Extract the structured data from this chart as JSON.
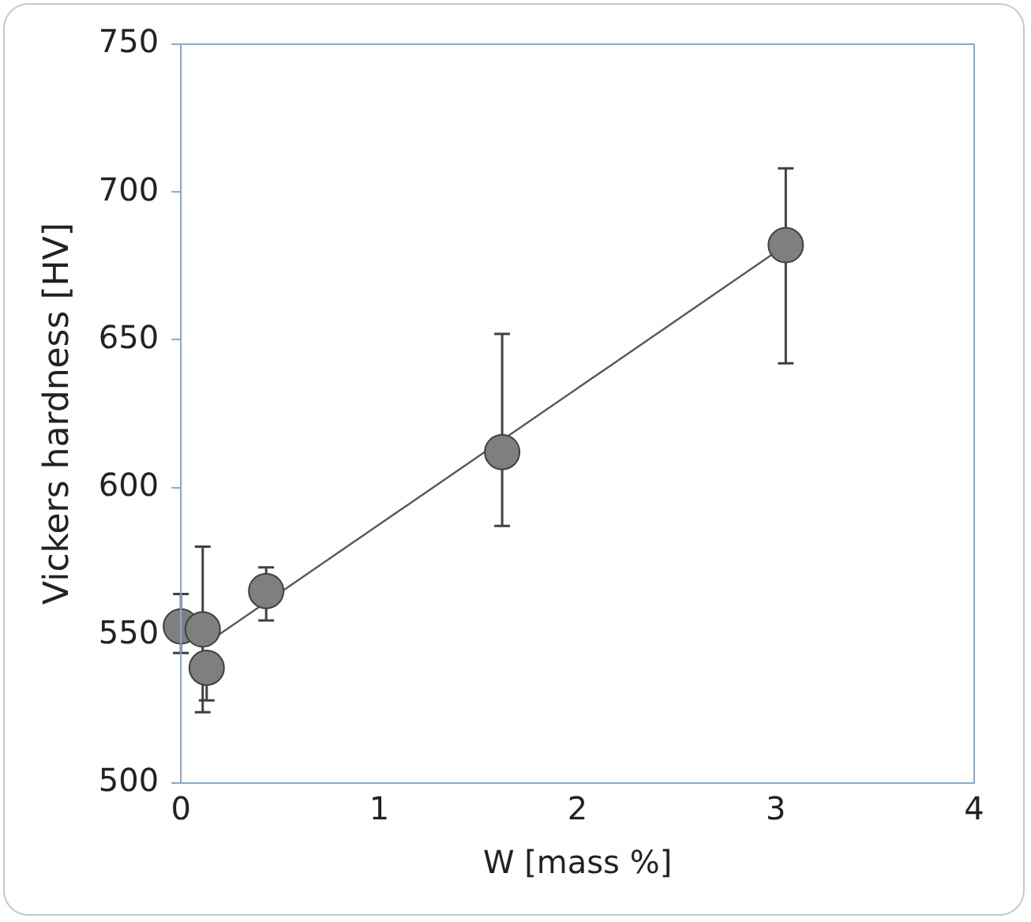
{
  "chart_data": {
    "type": "scatter",
    "xlabel": "W [mass %]",
    "ylabel": "Vickers hardness [HV]",
    "xlim": [
      0,
      4
    ],
    "xticks": [
      0,
      1,
      2,
      3,
      4
    ],
    "ylim": [
      500,
      750
    ],
    "yticks": [
      500,
      550,
      600,
      650,
      700,
      750
    ],
    "grid": false,
    "legend": false,
    "marker": "circle",
    "series": [
      {
        "type": "line",
        "color": "#595959",
        "x": [
          0.1,
          3.05
        ],
        "values": [
          546,
          682
        ],
        "marker": "none"
      },
      {
        "color": "#7f7f7f",
        "x": [
          0,
          0.11,
          0.13,
          0.43,
          1.62,
          3.05
        ],
        "values": [
          553,
          552,
          539,
          565,
          612,
          682
        ],
        "errors": [
          [
            544,
            564
          ],
          [
            524,
            580
          ],
          [
            528,
            539
          ],
          [
            555,
            573
          ],
          [
            587,
            652
          ],
          [
            642,
            708
          ]
        ]
      }
    ]
  }
}
